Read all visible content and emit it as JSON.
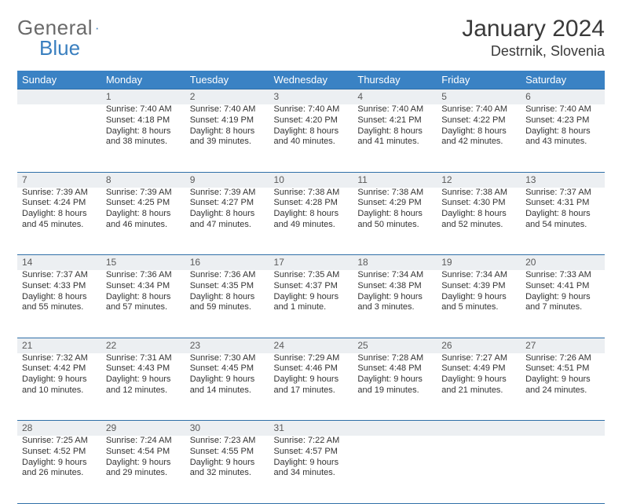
{
  "logo": {
    "word1": "General",
    "word2": "Blue"
  },
  "title": "January 2024",
  "subtitle": "Destrnik, Slovenia",
  "colors": {
    "header_bg": "#3a82c4",
    "header_fg": "#ffffff",
    "daynum_bg": "#eceff2",
    "daynum_fg": "#5a5a5a",
    "cell_fg": "#333333",
    "rule": "#2f6fa8",
    "logo_gray": "#6a6a6a",
    "logo_blue": "#3a7fbf",
    "title_fg": "#3a3a3a",
    "page_bg": "#ffffff"
  },
  "typography": {
    "title_size_pt": 22,
    "subtitle_size_pt": 13,
    "weekday_size_pt": 10,
    "daynum_size_pt": 9,
    "cell_size_pt": 8
  },
  "weekdays": [
    "Sunday",
    "Monday",
    "Tuesday",
    "Wednesday",
    "Thursday",
    "Friday",
    "Saturday"
  ],
  "weeks": [
    {
      "nums": [
        "",
        "1",
        "2",
        "3",
        "4",
        "5",
        "6"
      ],
      "cells": [
        null,
        {
          "sunrise": "Sunrise: 7:40 AM",
          "sunset": "Sunset: 4:18 PM",
          "day1": "Daylight: 8 hours",
          "day2": "and 38 minutes."
        },
        {
          "sunrise": "Sunrise: 7:40 AM",
          "sunset": "Sunset: 4:19 PM",
          "day1": "Daylight: 8 hours",
          "day2": "and 39 minutes."
        },
        {
          "sunrise": "Sunrise: 7:40 AM",
          "sunset": "Sunset: 4:20 PM",
          "day1": "Daylight: 8 hours",
          "day2": "and 40 minutes."
        },
        {
          "sunrise": "Sunrise: 7:40 AM",
          "sunset": "Sunset: 4:21 PM",
          "day1": "Daylight: 8 hours",
          "day2": "and 41 minutes."
        },
        {
          "sunrise": "Sunrise: 7:40 AM",
          "sunset": "Sunset: 4:22 PM",
          "day1": "Daylight: 8 hours",
          "day2": "and 42 minutes."
        },
        {
          "sunrise": "Sunrise: 7:40 AM",
          "sunset": "Sunset: 4:23 PM",
          "day1": "Daylight: 8 hours",
          "day2": "and 43 minutes."
        }
      ]
    },
    {
      "nums": [
        "7",
        "8",
        "9",
        "10",
        "11",
        "12",
        "13"
      ],
      "cells": [
        {
          "sunrise": "Sunrise: 7:39 AM",
          "sunset": "Sunset: 4:24 PM",
          "day1": "Daylight: 8 hours",
          "day2": "and 45 minutes."
        },
        {
          "sunrise": "Sunrise: 7:39 AM",
          "sunset": "Sunset: 4:25 PM",
          "day1": "Daylight: 8 hours",
          "day2": "and 46 minutes."
        },
        {
          "sunrise": "Sunrise: 7:39 AM",
          "sunset": "Sunset: 4:27 PM",
          "day1": "Daylight: 8 hours",
          "day2": "and 47 minutes."
        },
        {
          "sunrise": "Sunrise: 7:38 AM",
          "sunset": "Sunset: 4:28 PM",
          "day1": "Daylight: 8 hours",
          "day2": "and 49 minutes."
        },
        {
          "sunrise": "Sunrise: 7:38 AM",
          "sunset": "Sunset: 4:29 PM",
          "day1": "Daylight: 8 hours",
          "day2": "and 50 minutes."
        },
        {
          "sunrise": "Sunrise: 7:38 AM",
          "sunset": "Sunset: 4:30 PM",
          "day1": "Daylight: 8 hours",
          "day2": "and 52 minutes."
        },
        {
          "sunrise": "Sunrise: 7:37 AM",
          "sunset": "Sunset: 4:31 PM",
          "day1": "Daylight: 8 hours",
          "day2": "and 54 minutes."
        }
      ]
    },
    {
      "nums": [
        "14",
        "15",
        "16",
        "17",
        "18",
        "19",
        "20"
      ],
      "cells": [
        {
          "sunrise": "Sunrise: 7:37 AM",
          "sunset": "Sunset: 4:33 PM",
          "day1": "Daylight: 8 hours",
          "day2": "and 55 minutes."
        },
        {
          "sunrise": "Sunrise: 7:36 AM",
          "sunset": "Sunset: 4:34 PM",
          "day1": "Daylight: 8 hours",
          "day2": "and 57 minutes."
        },
        {
          "sunrise": "Sunrise: 7:36 AM",
          "sunset": "Sunset: 4:35 PM",
          "day1": "Daylight: 8 hours",
          "day2": "and 59 minutes."
        },
        {
          "sunrise": "Sunrise: 7:35 AM",
          "sunset": "Sunset: 4:37 PM",
          "day1": "Daylight: 9 hours",
          "day2": "and 1 minute."
        },
        {
          "sunrise": "Sunrise: 7:34 AM",
          "sunset": "Sunset: 4:38 PM",
          "day1": "Daylight: 9 hours",
          "day2": "and 3 minutes."
        },
        {
          "sunrise": "Sunrise: 7:34 AM",
          "sunset": "Sunset: 4:39 PM",
          "day1": "Daylight: 9 hours",
          "day2": "and 5 minutes."
        },
        {
          "sunrise": "Sunrise: 7:33 AM",
          "sunset": "Sunset: 4:41 PM",
          "day1": "Daylight: 9 hours",
          "day2": "and 7 minutes."
        }
      ]
    },
    {
      "nums": [
        "21",
        "22",
        "23",
        "24",
        "25",
        "26",
        "27"
      ],
      "cells": [
        {
          "sunrise": "Sunrise: 7:32 AM",
          "sunset": "Sunset: 4:42 PM",
          "day1": "Daylight: 9 hours",
          "day2": "and 10 minutes."
        },
        {
          "sunrise": "Sunrise: 7:31 AM",
          "sunset": "Sunset: 4:43 PM",
          "day1": "Daylight: 9 hours",
          "day2": "and 12 minutes."
        },
        {
          "sunrise": "Sunrise: 7:30 AM",
          "sunset": "Sunset: 4:45 PM",
          "day1": "Daylight: 9 hours",
          "day2": "and 14 minutes."
        },
        {
          "sunrise": "Sunrise: 7:29 AM",
          "sunset": "Sunset: 4:46 PM",
          "day1": "Daylight: 9 hours",
          "day2": "and 17 minutes."
        },
        {
          "sunrise": "Sunrise: 7:28 AM",
          "sunset": "Sunset: 4:48 PM",
          "day1": "Daylight: 9 hours",
          "day2": "and 19 minutes."
        },
        {
          "sunrise": "Sunrise: 7:27 AM",
          "sunset": "Sunset: 4:49 PM",
          "day1": "Daylight: 9 hours",
          "day2": "and 21 minutes."
        },
        {
          "sunrise": "Sunrise: 7:26 AM",
          "sunset": "Sunset: 4:51 PM",
          "day1": "Daylight: 9 hours",
          "day2": "and 24 minutes."
        }
      ]
    },
    {
      "nums": [
        "28",
        "29",
        "30",
        "31",
        "",
        "",
        ""
      ],
      "cells": [
        {
          "sunrise": "Sunrise: 7:25 AM",
          "sunset": "Sunset: 4:52 PM",
          "day1": "Daylight: 9 hours",
          "day2": "and 26 minutes."
        },
        {
          "sunrise": "Sunrise: 7:24 AM",
          "sunset": "Sunset: 4:54 PM",
          "day1": "Daylight: 9 hours",
          "day2": "and 29 minutes."
        },
        {
          "sunrise": "Sunrise: 7:23 AM",
          "sunset": "Sunset: 4:55 PM",
          "day1": "Daylight: 9 hours",
          "day2": "and 32 minutes."
        },
        {
          "sunrise": "Sunrise: 7:22 AM",
          "sunset": "Sunset: 4:57 PM",
          "day1": "Daylight: 9 hours",
          "day2": "and 34 minutes."
        },
        null,
        null,
        null
      ]
    }
  ]
}
